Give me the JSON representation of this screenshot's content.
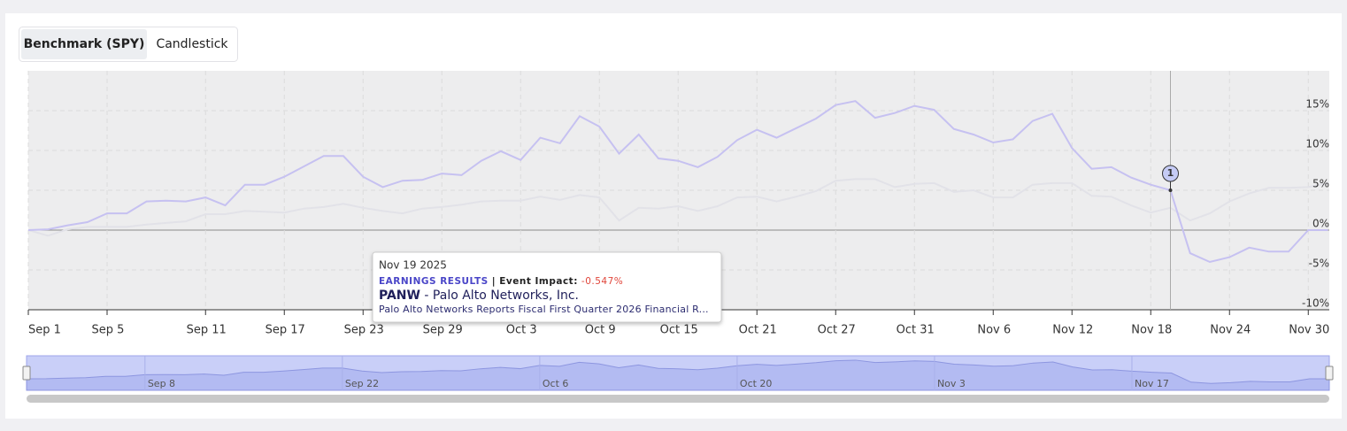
{
  "tabs": [
    "Benchmark (SPY)",
    "Candlestick"
  ],
  "chart_data": {
    "type": "line",
    "categories": [
      "Sep 1",
      null,
      null,
      null,
      "Sep 5",
      null,
      null,
      null,
      null,
      "Sep 11",
      null,
      null,
      null,
      "Sep 17",
      null,
      null,
      null,
      "Sep 23",
      null,
      null,
      null,
      "Sep 29",
      null,
      null,
      null,
      "Oct 3",
      null,
      null,
      null,
      "Oct 9",
      null,
      null,
      null,
      "Oct 15",
      null,
      null,
      null,
      "Oct 21",
      null,
      null,
      null,
      "Oct 27",
      null,
      null,
      null,
      "Oct 31",
      null,
      null,
      null,
      "Nov 6",
      null,
      null,
      null,
      "Nov 12",
      null,
      null,
      null,
      "Nov 18",
      null,
      null,
      null,
      "Nov 24",
      null,
      null,
      null,
      "Nov 30",
      null
    ],
    "series": [
      {
        "color": "#e2e2e8",
        "values": [
          0,
          -0.7,
          0.1,
          0.4,
          0.4,
          0.4,
          0.7,
          0.9,
          1.1,
          2.0,
          2.0,
          2.4,
          2.3,
          2.2,
          2.7,
          2.9,
          3.3,
          2.8,
          2.4,
          2.1,
          2.7,
          2.9,
          3.2,
          3.6,
          3.7,
          3.7,
          4.2,
          3.8,
          4.4,
          4.1,
          1.2,
          2.8,
          2.7,
          3.0,
          2.4,
          3.0,
          4.1,
          4.2,
          3.6,
          4.2,
          4.9,
          6.2,
          6.4,
          6.4,
          5.4,
          5.8,
          5.9,
          4.8,
          5.0,
          4.1,
          4.1,
          5.7,
          5.9,
          5.9,
          4.3,
          4.2,
          3.1,
          2.2,
          2.8,
          1.2,
          2.1,
          3.6,
          4.6,
          5.3,
          5.3,
          5.4,
          5.9
        ]
      },
      {
        "color": "#c6c1f1",
        "values": [
          0,
          0.1,
          0.6,
          1.0,
          2.1,
          2.1,
          3.6,
          3.7,
          3.6,
          4.1,
          3.1,
          5.7,
          5.7,
          6.7,
          8.0,
          9.3,
          9.3,
          6.7,
          5.4,
          6.2,
          6.3,
          7.1,
          6.9,
          8.7,
          9.9,
          8.8,
          11.6,
          10.9,
          14.3,
          13.0,
          9.6,
          12.0,
          9.0,
          8.7,
          7.9,
          9.2,
          11.3,
          12.6,
          11.6,
          12.8,
          14.0,
          15.7,
          16.2,
          14.1,
          14.7,
          15.6,
          15.1,
          12.7,
          12.0,
          11.0,
          11.4,
          13.7,
          14.6,
          10.3,
          7.7,
          7.9,
          6.6,
          5.7,
          5.0,
          -2.9,
          -4.0,
          -3.4,
          -2.2,
          -2.7,
          -2.7,
          0,
          0
        ]
      }
    ],
    "ylim": [
      -10,
      20
    ],
    "yticks": [
      {
        "value": -10,
        "label": "-10%"
      },
      {
        "value": -5,
        "label": "-5%"
      },
      {
        "value": 0,
        "label": "0%"
      },
      {
        "value": 5,
        "label": "5%"
      },
      {
        "value": 10,
        "label": "10%"
      },
      {
        "value": 15,
        "label": "15%"
      }
    ],
    "grid": true,
    "marker": {
      "label": "1",
      "x": 58
    },
    "tooltip": {
      "date": "Nov 19 2025",
      "category": "EARNINGS RESULTS",
      "impact_label": "| Event Impact:",
      "impact": "-0.547%",
      "ticker": "PANW",
      "company": " - Palo Alto Networks, Inc.",
      "headline": "Palo Alto Networks Reports Fiscal First Quarter 2026 Financial R..."
    },
    "navigator": {
      "labels": [
        "Sep 8",
        "Sep 22",
        "Oct 6",
        "Oct 20",
        "Nov 3",
        "Nov 17"
      ]
    }
  }
}
